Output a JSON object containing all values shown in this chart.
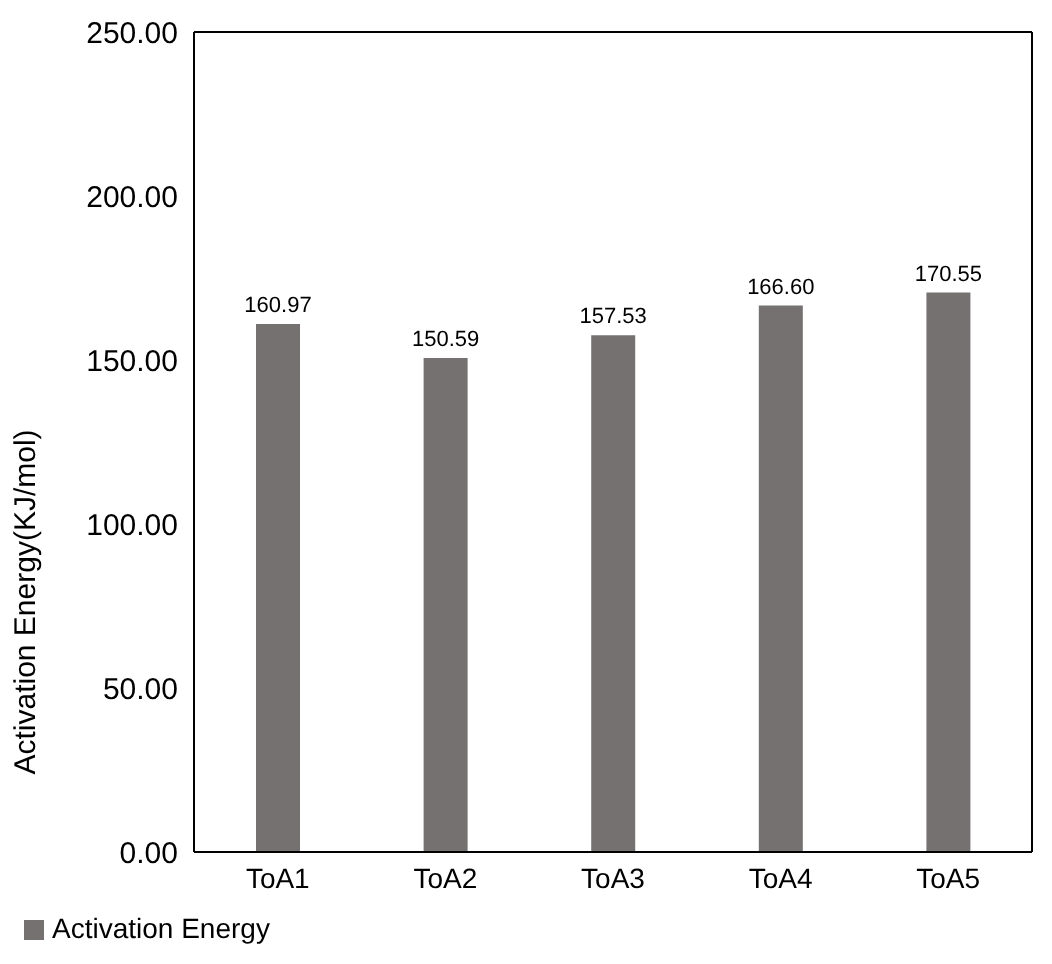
{
  "chart_data": {
    "type": "bar",
    "ylabel": "Activation Energy(KJ/mol)",
    "categories": [
      "ToA1",
      "ToA2",
      "ToA3",
      "ToA4",
      "ToA5"
    ],
    "series": [
      {
        "name": "Activation Energy",
        "color": "#767171",
        "values": [
          160.97,
          150.59,
          157.53,
          166.6,
          170.55
        ]
      }
    ],
    "ylim": [
      0,
      250
    ],
    "yticks": [
      {
        "value": 0,
        "label": "0.00"
      },
      {
        "value": 50,
        "label": "50.00"
      },
      {
        "value": 100,
        "label": "100.00"
      },
      {
        "value": 150,
        "label": "150.00"
      },
      {
        "value": 200,
        "label": "200.00"
      },
      {
        "value": 250,
        "label": "250.00"
      }
    ],
    "value_labels": [
      "160.97",
      "150.59",
      "157.53",
      "166.60",
      "170.55"
    ],
    "grid": false,
    "legend": "bottom left"
  }
}
